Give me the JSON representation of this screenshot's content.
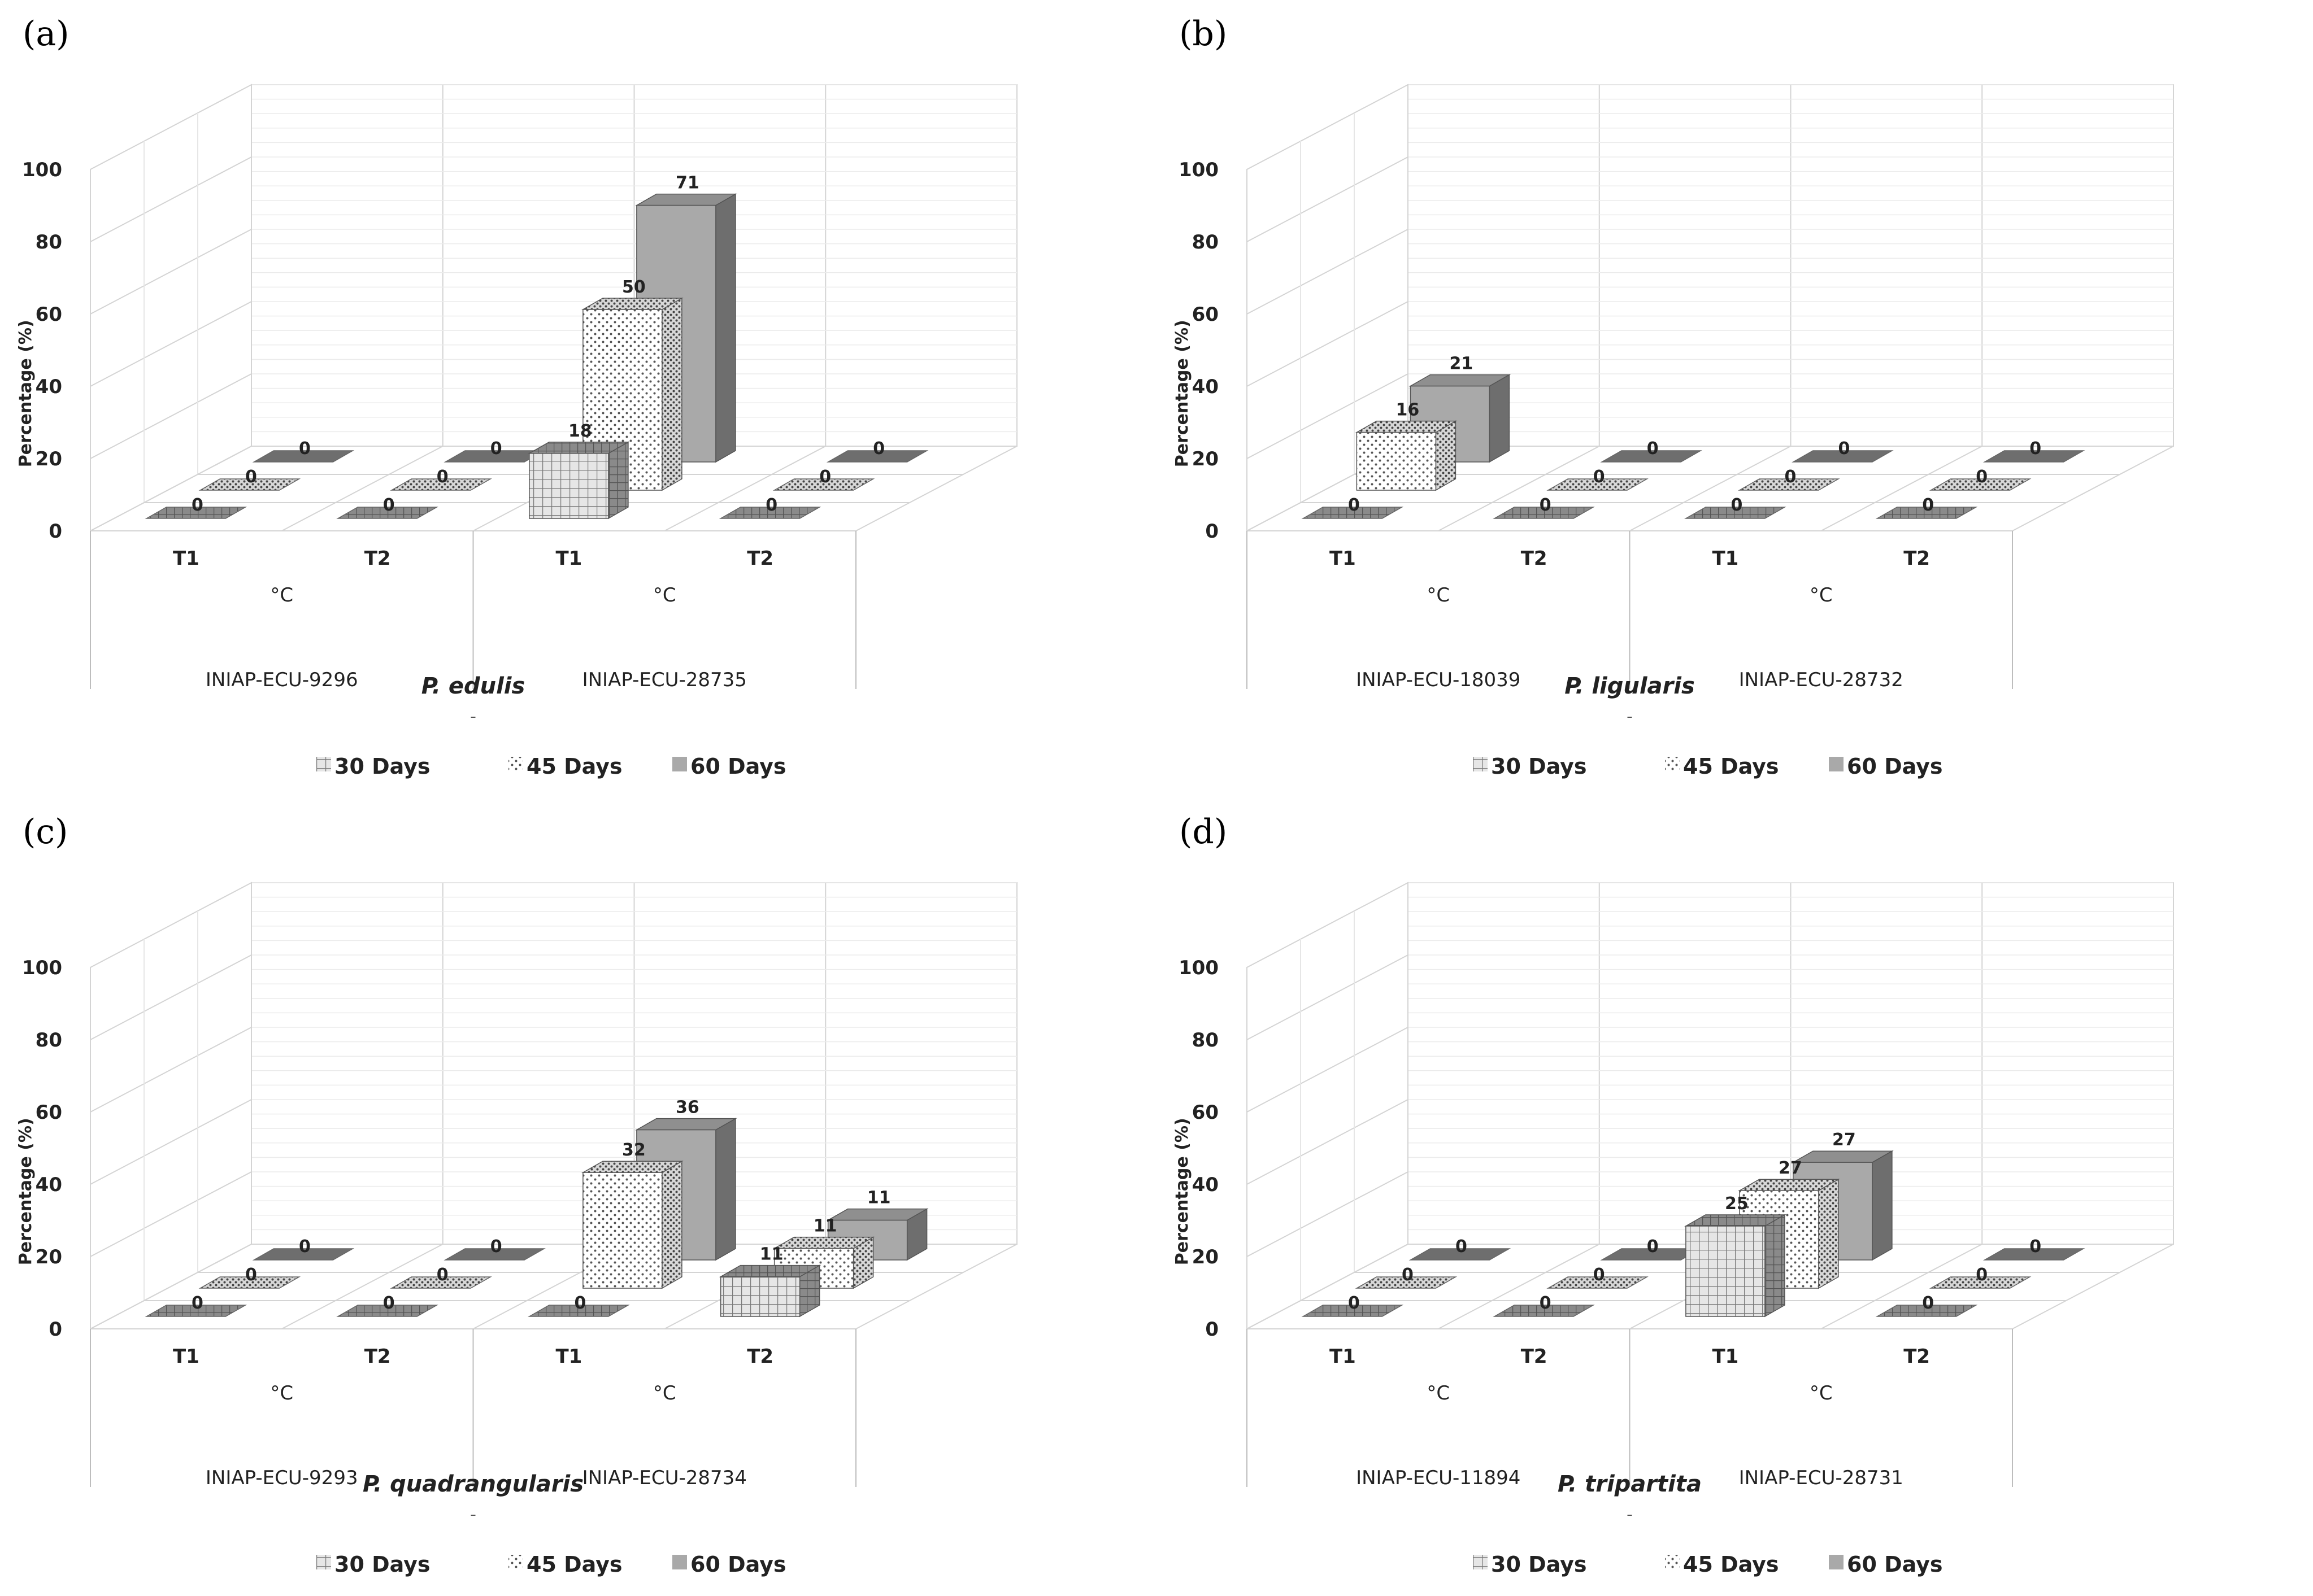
{
  "colors": {
    "grid": "#d4d4d4",
    "axis": "#bdbdbd",
    "text": "#222222",
    "s30_front": "#e6e6e6",
    "s30_side": "#8a8a8a",
    "s45_front": "#ffffff",
    "s45_side": "#f2f2f2",
    "s60_front": "#a9a9a9",
    "s60_side": "#6e6e6e",
    "s60_top": "#8f8f8f"
  },
  "chart_data": [
    {
      "type": "bar",
      "panel_label": "(a)",
      "ylabel": "Percentage (%)",
      "ylim": [
        0,
        100
      ],
      "yticks": [
        "0",
        "20",
        "40",
        "60",
        "80",
        "100"
      ],
      "species": "P. edulis",
      "unit": "°C",
      "accessions": [
        "INIAP-ECU-9296",
        "INIAP-ECU-28735"
      ],
      "categories": [
        "T1",
        "T2",
        "T1",
        "T2"
      ],
      "series": [
        {
          "name": "30 Days",
          "values": [
            0,
            0,
            18,
            0
          ]
        },
        {
          "name": "45 Days",
          "values": [
            0,
            0,
            50,
            0
          ]
        },
        {
          "name": "60 Days",
          "values": [
            0,
            0,
            71,
            0
          ]
        }
      ],
      "legend": [
        "30 Days",
        "45 Days",
        "60 Days"
      ]
    },
    {
      "type": "bar",
      "panel_label": "(b)",
      "ylabel": "Percentage (%)",
      "ylim": [
        0,
        100
      ],
      "yticks": [
        "0",
        "20",
        "40",
        "60",
        "80",
        "100"
      ],
      "species": "P. ligularis",
      "unit": "°C",
      "accessions": [
        "INIAP-ECU-18039",
        "INIAP-ECU-28732"
      ],
      "categories": [
        "T1",
        "T2",
        "T1",
        "T2"
      ],
      "series": [
        {
          "name": "30 Days",
          "values": [
            0,
            0,
            0,
            0
          ]
        },
        {
          "name": "45 Days",
          "values": [
            16,
            0,
            0,
            0
          ]
        },
        {
          "name": "60 Days",
          "values": [
            21,
            0,
            0,
            0
          ]
        }
      ],
      "legend": [
        "30 Days",
        "45 Days",
        "60 Days"
      ]
    },
    {
      "type": "bar",
      "panel_label": "(c)",
      "ylabel": "Percentage (%)",
      "ylim": [
        0,
        100
      ],
      "yticks": [
        "0",
        "20",
        "40",
        "60",
        "80",
        "100"
      ],
      "species": "P. quadrangularis",
      "unit": "°C",
      "accessions": [
        "INIAP-ECU-9293",
        "INIAP-ECU-28734"
      ],
      "categories": [
        "T1",
        "T2",
        "T1",
        "T2"
      ],
      "series": [
        {
          "name": "30 Days",
          "values": [
            0,
            0,
            0,
            11
          ]
        },
        {
          "name": "45 Days",
          "values": [
            0,
            0,
            32,
            11
          ]
        },
        {
          "name": "60 Days",
          "values": [
            0,
            0,
            36,
            11
          ]
        }
      ],
      "legend": [
        "30 Days",
        "45 Days",
        "60 Days"
      ]
    },
    {
      "type": "bar",
      "panel_label": "(d)",
      "ylabel": "Percentage (%)",
      "ylim": [
        0,
        100
      ],
      "yticks": [
        "0",
        "20",
        "40",
        "60",
        "80",
        "100"
      ],
      "species": "P. tripartita",
      "unit": "°C",
      "accessions": [
        "INIAP-ECU-11894",
        "INIAP-ECU-28731"
      ],
      "categories": [
        "T1",
        "T2",
        "T1",
        "T2"
      ],
      "series": [
        {
          "name": "30 Days",
          "values": [
            0,
            0,
            25,
            0
          ]
        },
        {
          "name": "45 Days",
          "values": [
            0,
            0,
            27,
            0
          ]
        },
        {
          "name": "60 Days",
          "values": [
            0,
            0,
            27,
            0
          ]
        }
      ],
      "legend": [
        "30 Days",
        "45 Days",
        "60 Days"
      ]
    }
  ]
}
